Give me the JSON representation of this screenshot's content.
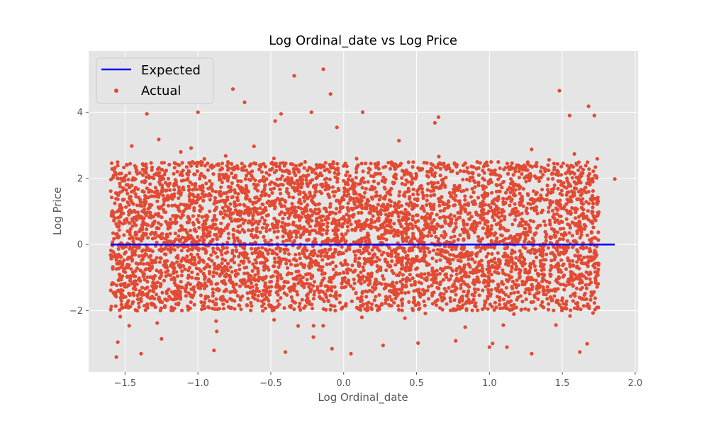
{
  "chart_data": {
    "type": "scatter",
    "title": "Log Ordinal_date vs Log Price",
    "xlabel": "Log Ordinal_date",
    "ylabel": "Log Price",
    "xlim": [
      -1.75,
      2.02
    ],
    "ylim": [
      -3.85,
      5.85
    ],
    "x_ticks": [
      -1.5,
      -1.0,
      -0.5,
      0.0,
      0.5,
      1.0,
      1.5,
      2.0
    ],
    "x_tick_labels": [
      "−1.5",
      "−1.0",
      "−0.5",
      "0.0",
      "0.5",
      "1.0",
      "1.5",
      "2.0"
    ],
    "y_ticks": [
      -2,
      0,
      2,
      4
    ],
    "y_tick_labels": [
      "−2",
      "0",
      "2",
      "4"
    ],
    "grid": true,
    "legend_position": "top-left",
    "series": [
      {
        "name": "Expected",
        "kind": "line",
        "color": "#0000ff",
        "x": [
          -1.6,
          1.86
        ],
        "y": [
          0,
          0
        ]
      },
      {
        "name": "Actual",
        "kind": "scatter",
        "color": "#e24a33",
        "x_range": [
          -1.6,
          1.75
        ],
        "y_body_range": [
          -2.0,
          2.5
        ],
        "points": [
          [
            -1.2,
            4.35
          ],
          [
            -0.76,
            4.7
          ],
          [
            -0.34,
            5.1
          ],
          [
            -0.14,
            5.3
          ],
          [
            -0.09,
            4.55
          ],
          [
            -0.68,
            4.3
          ],
          [
            1.48,
            4.65
          ],
          [
            1.68,
            4.18
          ],
          [
            1.86,
            1.98
          ],
          [
            -1.35,
            3.95
          ],
          [
            -1.0,
            4.0
          ],
          [
            -0.43,
            3.95
          ],
          [
            0.13,
            4.0
          ],
          [
            0.65,
            3.85
          ],
          [
            1.55,
            3.9
          ],
          [
            1.72,
            3.9
          ],
          [
            -1.56,
            -3.4
          ],
          [
            -1.39,
            -3.3
          ],
          [
            -0.89,
            -3.2
          ],
          [
            -0.4,
            -3.25
          ],
          [
            -0.08,
            -3.15
          ],
          [
            0.05,
            -3.3
          ],
          [
            0.27,
            -3.05
          ],
          [
            1.0,
            -3.1
          ],
          [
            1.12,
            -3.1
          ],
          [
            1.29,
            -3.3
          ],
          [
            1.62,
            -3.25
          ],
          [
            1.67,
            -3.0
          ],
          [
            -1.55,
            -2.95
          ],
          [
            -1.25,
            -2.85
          ]
        ]
      }
    ]
  }
}
